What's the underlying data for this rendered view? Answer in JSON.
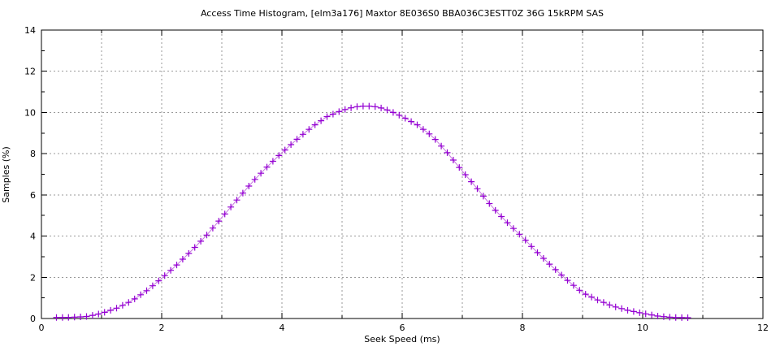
{
  "page": {
    "background_color": "#ffffff",
    "text_color": "#000000"
  },
  "chart_data": {
    "type": "line",
    "title": "Access Time Histogram, [elm3a176] Maxtor 8E036S0 BBA036C3ESTT0Z 36G 15kRPM SAS",
    "xlabel": "Seek Speed (ms)",
    "ylabel": "Samples (%)",
    "xlim": [
      0,
      12
    ],
    "ylim": [
      0,
      14
    ],
    "xticks_major": [
      0,
      2,
      4,
      6,
      8,
      10,
      12
    ],
    "xticks_minor": [
      1,
      3,
      5,
      7,
      9,
      11
    ],
    "yticks_major": [
      0,
      2,
      4,
      6,
      8,
      10,
      12,
      14
    ],
    "yticks_minor": [
      1,
      3,
      5,
      7,
      9,
      11,
      13
    ],
    "grid": {
      "vertical_x": [
        1,
        2,
        3,
        4,
        5,
        6,
        7,
        8,
        9,
        10,
        11
      ],
      "horizontal_y": [
        2,
        4,
        6,
        8,
        10,
        12
      ],
      "color": "#9a9a9a",
      "style": "dashed"
    },
    "legend": "none",
    "border_color": "#000000",
    "series": [
      {
        "name": "samples-percent",
        "marker": "plus",
        "marker_color": "#9400d3",
        "line_color": "#c678e0",
        "marker_x_start": 0.25,
        "marker_x_step": 0.1,
        "marker_x_end": 10.75,
        "peak": {
          "x": 5.4,
          "y": 10.32
        },
        "points": [
          [
            0.25,
            0.05
          ],
          [
            0.35,
            0.05
          ],
          [
            0.5,
            0.06
          ],
          [
            0.65,
            0.08
          ],
          [
            0.75,
            0.1
          ],
          [
            0.9,
            0.18
          ],
          [
            1.0,
            0.25
          ],
          [
            1.25,
            0.5
          ],
          [
            1.5,
            0.85
          ],
          [
            1.75,
            1.35
          ],
          [
            2.0,
            1.95
          ],
          [
            2.25,
            2.6
          ],
          [
            2.5,
            3.3
          ],
          [
            2.75,
            4.05
          ],
          [
            3.0,
            4.9
          ],
          [
            3.25,
            5.75
          ],
          [
            3.5,
            6.6
          ],
          [
            3.75,
            7.35
          ],
          [
            4.0,
            8.05
          ],
          [
            4.25,
            8.7
          ],
          [
            4.5,
            9.3
          ],
          [
            4.75,
            9.8
          ],
          [
            5.0,
            10.1
          ],
          [
            5.2,
            10.27
          ],
          [
            5.4,
            10.32
          ],
          [
            5.6,
            10.27
          ],
          [
            5.8,
            10.07
          ],
          [
            6.0,
            9.8
          ],
          [
            6.25,
            9.4
          ],
          [
            6.5,
            8.85
          ],
          [
            6.75,
            8.05
          ],
          [
            7.0,
            7.15
          ],
          [
            7.25,
            6.3
          ],
          [
            7.5,
            5.4
          ],
          [
            7.75,
            4.65
          ],
          [
            8.0,
            3.95
          ],
          [
            8.25,
            3.2
          ],
          [
            8.5,
            2.5
          ],
          [
            8.75,
            1.85
          ],
          [
            9.0,
            1.25
          ],
          [
            9.25,
            0.9
          ],
          [
            9.5,
            0.6
          ],
          [
            9.75,
            0.4
          ],
          [
            10.0,
            0.25
          ],
          [
            10.25,
            0.12
          ],
          [
            10.5,
            0.05
          ],
          [
            10.75,
            0.04
          ]
        ]
      }
    ]
  }
}
